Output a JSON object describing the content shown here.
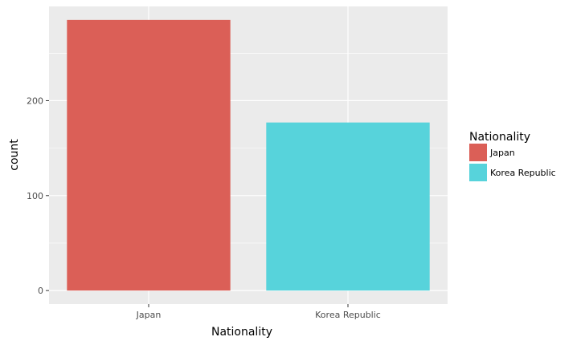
{
  "chart_data": {
    "type": "bar",
    "categories": [
      "Japan",
      "Korea Republic"
    ],
    "values": [
      285,
      177
    ],
    "xlabel": "Nationality",
    "ylabel": "count",
    "ylim": [
      -14.25,
      299.25
    ],
    "yticks": [
      0,
      100,
      200
    ],
    "grid": true,
    "legend": {
      "title": "Nationality",
      "placement": "right",
      "entries": [
        "Japan",
        "Korea Republic"
      ]
    },
    "colors": {
      "Japan": "#db5f57",
      "Korea Republic": "#57d3db",
      "panel": "#ebebeb",
      "grid": "#ffffff"
    }
  }
}
